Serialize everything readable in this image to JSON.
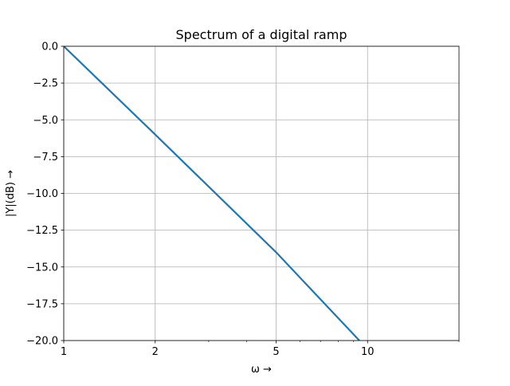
{
  "chart_data": {
    "type": "line",
    "title": "Spectrum of a digital ramp",
    "xlabel": "ω →",
    "ylabel": "|Y|(dB) →",
    "xscale": "log",
    "xlim": [
      1,
      20
    ],
    "ylim": [
      -20.0,
      0.0
    ],
    "grid": true,
    "xticks": [
      {
        "value": 1,
        "label": "1"
      },
      {
        "value": 2,
        "label": "2"
      },
      {
        "value": 5,
        "label": "5"
      },
      {
        "value": 10,
        "label": "10"
      }
    ],
    "x_minor_ticks": [
      3,
      4,
      6,
      7,
      8,
      9,
      20
    ],
    "yticks": [
      {
        "value": 0.0,
        "label": "0.0"
      },
      {
        "value": -2.5,
        "label": "−2.5"
      },
      {
        "value": -5.0,
        "label": "−5.0"
      },
      {
        "value": -7.5,
        "label": "−7.5"
      },
      {
        "value": -10.0,
        "label": "−10.0"
      },
      {
        "value": -12.5,
        "label": "−12.5"
      },
      {
        "value": -15.0,
        "label": "−15.0"
      },
      {
        "value": -17.5,
        "label": "−17.5"
      },
      {
        "value": -20.0,
        "label": "−20.0"
      }
    ],
    "series": [
      {
        "color": "#1f77b4",
        "x": [
          1,
          2,
          5,
          9.4
        ],
        "y": [
          0.0,
          -6.0,
          -14.0,
          -20.0
        ]
      }
    ]
  }
}
